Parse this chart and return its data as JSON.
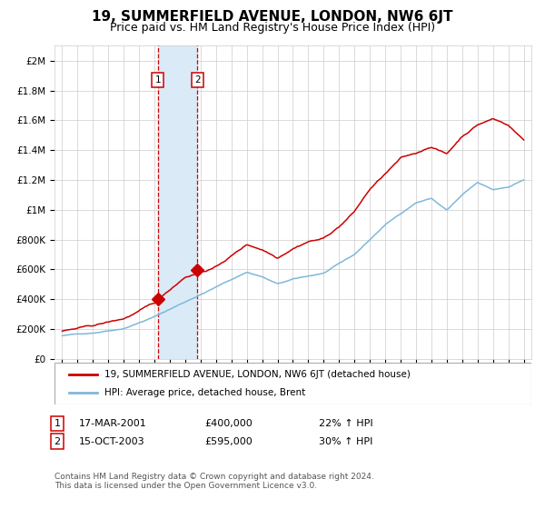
{
  "title": "19, SUMMERFIELD AVENUE, LONDON, NW6 6JT",
  "subtitle": "Price paid vs. HM Land Registry's House Price Index (HPI)",
  "title_fontsize": 11,
  "subtitle_fontsize": 9,
  "ylabel_ticks": [
    "£0",
    "£200K",
    "£400K",
    "£600K",
    "£800K",
    "£1M",
    "£1.2M",
    "£1.4M",
    "£1.6M",
    "£1.8M",
    "£2M"
  ],
  "ytick_values": [
    0,
    200000,
    400000,
    600000,
    800000,
    1000000,
    1200000,
    1400000,
    1600000,
    1800000,
    2000000
  ],
  "ylim": [
    0,
    2100000
  ],
  "xlim_start": 1994.5,
  "xlim_end": 2025.5,
  "year_start": 1995,
  "year_end": 2025,
  "hpi_color": "#7fb8d8",
  "price_color": "#cc0000",
  "marker_color": "#cc0000",
  "shade_color": "#daeaf6",
  "vline_color": "#cc0000",
  "grid_color": "#cccccc",
  "bg_color": "#ffffff",
  "transaction1_year": 2001.21,
  "transaction1_price": 400000,
  "transaction2_year": 2003.79,
  "transaction2_price": 595000,
  "legend_entries": [
    "19, SUMMERFIELD AVENUE, LONDON, NW6 6JT (detached house)",
    "HPI: Average price, detached house, Brent"
  ],
  "annotation1_label": "1",
  "annotation1_date": "17-MAR-2001",
  "annotation1_price": "£400,000",
  "annotation1_hpi": "22% ↑ HPI",
  "annotation2_label": "2",
  "annotation2_date": "15-OCT-2003",
  "annotation2_price": "£595,000",
  "annotation2_hpi": "30% ↑ HPI",
  "footer": "Contains HM Land Registry data © Crown copyright and database right 2024.\nThis data is licensed under the Open Government Licence v3.0."
}
